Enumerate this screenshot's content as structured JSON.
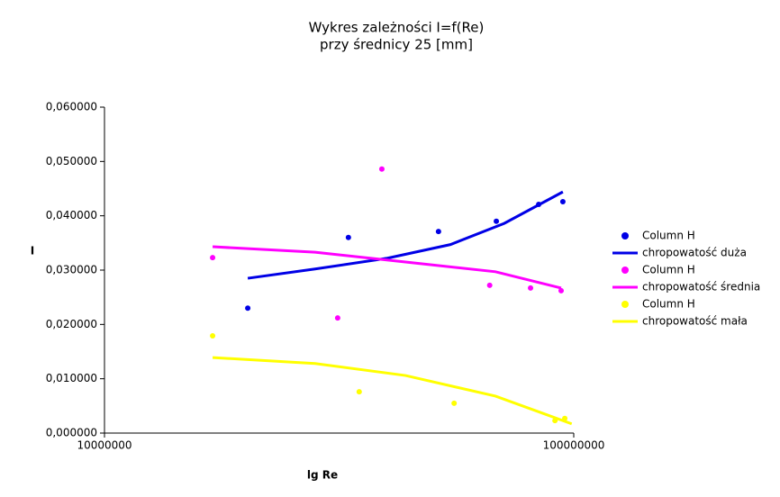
{
  "chart_data": {
    "type": "scatter",
    "title": "Wykres zależności I=f(Re)",
    "subtitle": "przy średnicy 25 [mm]",
    "x_label": "lg Re",
    "y_label": "I",
    "xscale": "log",
    "grid": false,
    "legend": "right",
    "xlim": [
      10000000,
      100000000
    ],
    "xticks": [
      10000000,
      100000000
    ],
    "ylim": [
      0,
      0.06
    ],
    "yticks": [
      {
        "value": 0,
        "label": "0,000000"
      },
      {
        "value": 0.01,
        "label": "0,010000"
      },
      {
        "value": 0.02,
        "label": "0,020000"
      },
      {
        "value": 0.03,
        "label": "0,030000"
      },
      {
        "value": 0.04,
        "label": "0,040000"
      },
      {
        "value": 0.05,
        "label": "0,050000"
      },
      {
        "value": 0.06,
        "label": "0,060000"
      }
    ],
    "series": [
      {
        "name": "Column H",
        "mode": "markers",
        "color": "#0000e6",
        "x": [
          20200000,
          33100000,
          51500000,
          68400000,
          84200000,
          94800000
        ],
        "values": [
          0.023,
          0.036,
          0.0371,
          0.039,
          0.0421,
          0.0426
        ]
      },
      {
        "name": "chropowatość duża",
        "mode": "line",
        "color": "#0000e6",
        "x": [
          20200000,
          28100000,
          40100000,
          54600000,
          71100000,
          94800000
        ],
        "values": [
          0.0285,
          0.0302,
          0.0322,
          0.0347,
          0.0386,
          0.0444
        ]
      },
      {
        "name": "Column H",
        "mode": "markers",
        "color": "#ff00ff",
        "x": [
          17000000,
          31400000,
          39000000,
          66200000,
          80900000,
          94000000
        ],
        "values": [
          0.0323,
          0.0212,
          0.0486,
          0.0272,
          0.0267,
          0.0262
        ]
      },
      {
        "name": "chropowatość średnia",
        "mode": "line",
        "color": "#ff00ff",
        "x": [
          17000000,
          28100000,
          43800000,
          68100000,
          94000000
        ],
        "values": [
          0.0343,
          0.0333,
          0.0315,
          0.0297,
          0.0267
        ]
      },
      {
        "name": "Column H",
        "mode": "markers",
        "color": "#ffff00",
        "x": [
          17000000,
          34900000,
          55600000,
          91200000,
          95700000
        ],
        "values": [
          0.0179,
          0.0076,
          0.0055,
          0.0023,
          0.0027
        ]
      },
      {
        "name": "chropowatość mała",
        "mode": "line",
        "color": "#ffff00",
        "x": [
          17000000,
          28100000,
          43800000,
          68100000,
          84900000,
          99000000
        ],
        "values": [
          0.0139,
          0.0128,
          0.0106,
          0.0068,
          0.0038,
          0.0017
        ]
      }
    ]
  }
}
